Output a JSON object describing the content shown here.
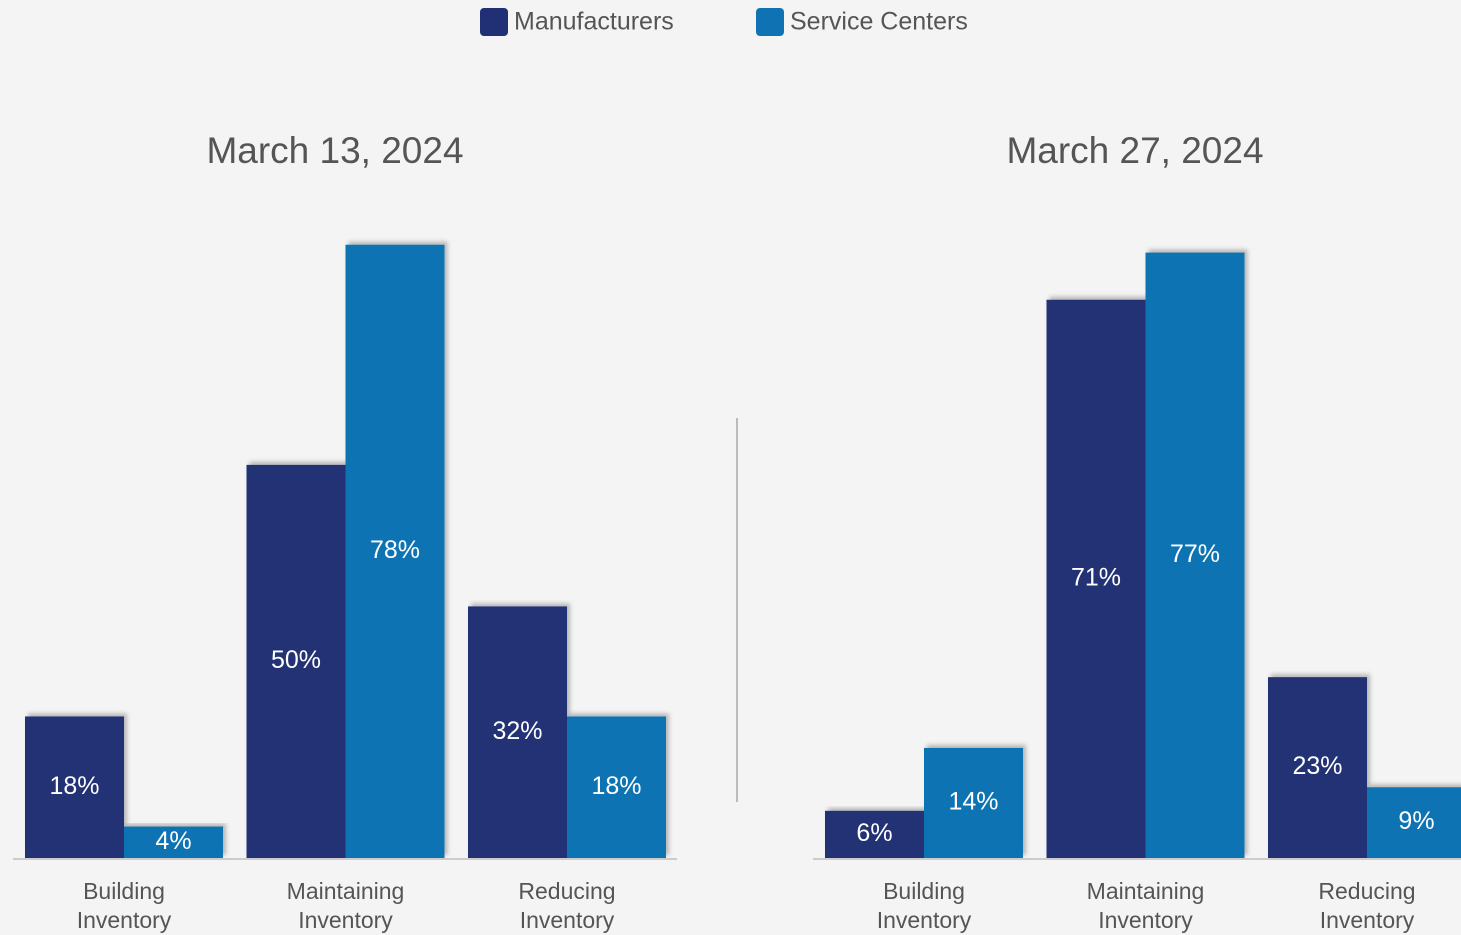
{
  "chart_data": [
    {
      "type": "bar",
      "title": "March 13, 2024",
      "categories": [
        "Building Inventory",
        "Maintaining Inventory",
        "Reducing Inventory"
      ],
      "series": [
        {
          "name": "Manufacturers",
          "color": "#213074",
          "values": [
            18,
            50,
            32
          ],
          "value_labels": [
            "18%",
            "50%",
            "32%"
          ]
        },
        {
          "name": "Service Centers",
          "color": "#0f73b3",
          "values": [
            4,
            78,
            18
          ],
          "value_labels": [
            "4%",
            "78%",
            "18%"
          ]
        }
      ],
      "ylim": [
        0,
        80
      ]
    },
    {
      "type": "bar",
      "title": "March 27, 2024",
      "categories": [
        "Building Inventory",
        "Maintaining Inventory",
        "Reducing Inventory"
      ],
      "series": [
        {
          "color": "#213074",
          "values": [
            6,
            71,
            23
          ],
          "value_labels": [
            "6%",
            "71%",
            "23%"
          ]
        },
        {
          "color": "#0f73b3",
          "values": [
            14,
            77,
            9
          ],
          "value_labels": [
            "14%",
            "77%",
            "9%"
          ]
        }
      ],
      "ylim": [
        0,
        80
      ]
    }
  ]
}
